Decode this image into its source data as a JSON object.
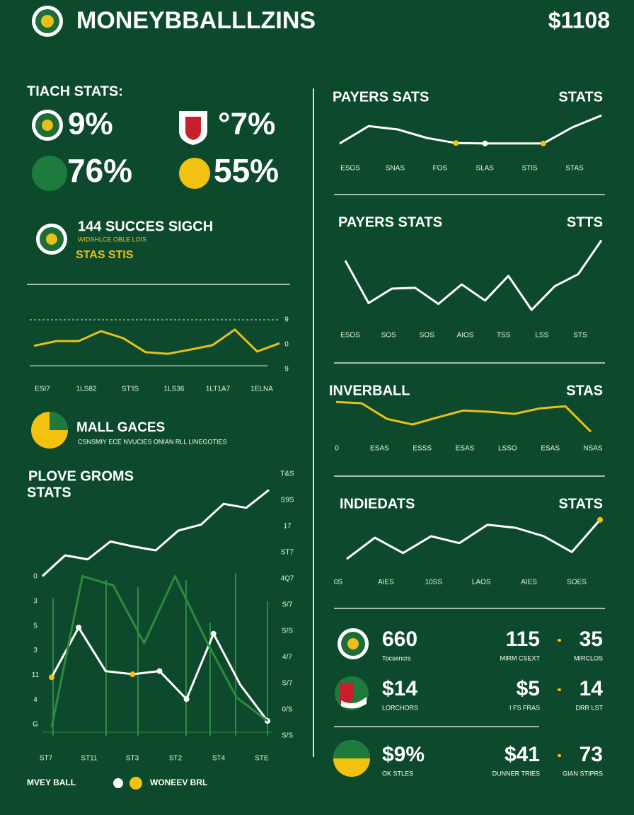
{
  "header": {
    "title": "MONEYBBALLLZINS",
    "balance": "$1108"
  },
  "team_stats": {
    "title": "TIACH STATS:",
    "items": [
      "9%",
      "°7%",
      "76%",
      "55%"
    ]
  },
  "success": {
    "title": "144 SUCCES SIGCH",
    "subtitle": "WIDSHLCE OBLE LOIS",
    "tag": "STAS STIS"
  },
  "games": {
    "title": "MALL GACES",
    "subtitle": "CSNSMIY ECE NVUCIES ONIAN RLL LINEGOTIES"
  },
  "legend": [
    "MVEY BALL",
    "WONEEV BRL"
  ],
  "chart_data": [
    {
      "type": "line",
      "ylim": [
        0,
        100
      ],
      "series": [
        {
          "color": "#e8c01a",
          "values": [
            36,
            51,
            51,
            82,
            60,
            16,
            11,
            24,
            38,
            87,
            18,
            44
          ]
        }
      ],
      "right_labels": [
        "9",
        "0",
        "9"
      ],
      "x_labels": [
        "ESI7",
        "1LS82",
        "ST'IS",
        "1LS36",
        "1LT1A7",
        "1ELNA"
      ]
    },
    {
      "type": "line",
      "title": "PLOVE GROMS",
      "subtitle": "STATS",
      "ylim": [
        0,
        100
      ],
      "series": [
        {
          "color": "#ffffff",
          "values": [
            4,
            25,
            21,
            39,
            34,
            30,
            50,
            56,
            77,
            73,
            91
          ]
        }
      ]
    },
    {
      "type": "line",
      "ylim": [
        0,
        100
      ],
      "series": [
        {
          "color": "#ffffff",
          "values": [
            33,
            65,
            37,
            35,
            37,
            19,
            61,
            28,
            5
          ],
          "dot_colors": [
            "#f2c20f",
            "#ffffff",
            null,
            "#f2c20f",
            "#ffffff",
            "#ffffff",
            "#ffffff",
            null,
            "#ffffff"
          ]
        },
        {
          "color": "#2f8a3e",
          "values": [
            1,
            98,
            92,
            55,
            98,
            57,
            20,
            5
          ]
        }
      ],
      "left_labels": [
        "0",
        "3",
        "5",
        "3",
        "11",
        "4",
        "G"
      ],
      "right_labels": [
        "T&S",
        "S9S",
        "17",
        "ST7",
        "4Q7",
        "S/7",
        "S/S",
        "4/7",
        "S/7",
        "0/S",
        "S/S"
      ],
      "x_labels": [
        "ST7",
        "ST11",
        "ST3",
        "ST2",
        "ST4",
        "STE"
      ]
    },
    {
      "type": "line",
      "title": "PAYERS SATS",
      "title_right": "STATS",
      "ylim": [
        0,
        100
      ],
      "series": [
        {
          "color": "#ffffff",
          "values": [
            12,
            53,
            45,
            25,
            13,
            12,
            12,
            12,
            50,
            78
          ],
          "dot_colors": [
            null,
            null,
            null,
            null,
            "#f2c20f",
            "#ffffff",
            null,
            "#f2c20f",
            null,
            null
          ]
        }
      ],
      "x_labels": [
        "ESOS",
        "SNAS",
        "FOS",
        "SLAS",
        "STIS",
        "STAS"
      ]
    },
    {
      "type": "line",
      "title": "PAYERS STATS",
      "title_right": "STTS",
      "ylim": [
        0,
        100
      ],
      "series": [
        {
          "color": "#ffffff",
          "values": [
            68,
            18,
            35,
            36,
            17,
            40,
            21,
            50,
            10,
            38,
            52,
            92
          ]
        }
      ],
      "x_labels": [
        "ESOS",
        "SOS",
        "SOS",
        "AIOS",
        "TSS",
        "LSS",
        "STS"
      ]
    },
    {
      "type": "line",
      "title": "INVERBALL",
      "title_right": "STAS",
      "ylim": [
        0,
        100
      ],
      "series": [
        {
          "color": "#e8c01a",
          "values": [
            78,
            75,
            38,
            25,
            42,
            58,
            55,
            50,
            63,
            68,
            8
          ]
        }
      ],
      "x_labels": [
        "0",
        "ESAS",
        "ESSS",
        "ESAS",
        "LSSO",
        "ESAS",
        "NSAS"
      ]
    },
    {
      "type": "line",
      "title": "INDIEDATS",
      "title_right": "STATS",
      "ylim": [
        0,
        100
      ],
      "series": [
        {
          "color": "#ffffff",
          "values": [
            7,
            50,
            19,
            53,
            39,
            76,
            70,
            53,
            21,
            86
          ],
          "dot_colors": [
            null,
            null,
            null,
            null,
            null,
            null,
            null,
            null,
            null,
            "#f2c20f"
          ]
        }
      ],
      "x_labels": [
        "0S",
        "AIES",
        "10SS",
        "LAOS",
        "AIES",
        "SOES"
      ]
    }
  ],
  "summary": {
    "rows": [
      [
        {
          "value": "660",
          "label": "Tocsencrs"
        },
        {
          "value": "115",
          "label": "MIRM CSEXT"
        },
        {
          "value": "35",
          "label": "MIRCLOS"
        }
      ],
      [
        {
          "value": "$14",
          "label": "LORCHORS"
        },
        {
          "value": "$5",
          "label": "I FS FRAS"
        },
        {
          "value": "14",
          "label": "DRR LST"
        }
      ],
      [
        {
          "value": "$9%",
          "label": "OK STLES"
        },
        {
          "value": "$41",
          "label": "DUNNER TRIES"
        },
        {
          "value": "73",
          "label": "GIAN STIPRS"
        }
      ]
    ]
  }
}
